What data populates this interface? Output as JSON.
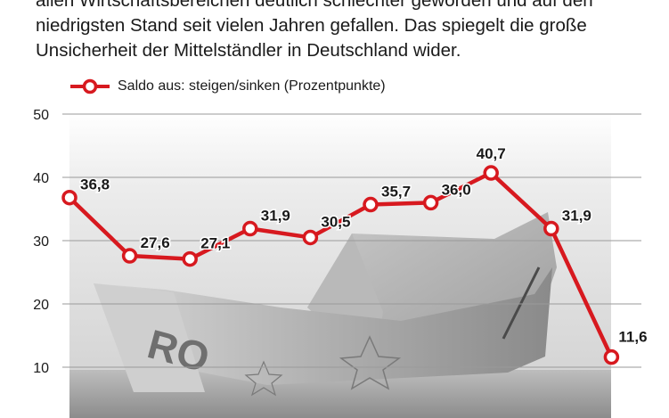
{
  "intro_lines": [
    "allen Wirtschaftsbereichen deutlich schlechter geworden und auf den",
    "niedrigsten Stand seit vielen Jahren gefallen. Das spiegelt die große",
    "Unsicherheit der Mittelständler in Deutschland wider."
  ],
  "colors": {
    "line": "#d7191f",
    "marker_fill": "#ffffff",
    "grid": "#9a9a9a",
    "text": "#1a1a1a"
  },
  "chart_data": {
    "type": "line",
    "title": "",
    "xlabel": "",
    "ylabel": "",
    "ylim": [
      10,
      50
    ],
    "yticks": [
      10,
      20,
      30,
      40,
      50
    ],
    "grid": true,
    "legend_position": "top-left",
    "series": [
      {
        "name": "Saldo aus: steigen/sinken (Prozentpunkte)",
        "values": [
          36.8,
          27.6,
          27.1,
          31.9,
          30.5,
          35.7,
          36.0,
          40.7,
          31.9,
          11.6
        ],
        "labels": [
          "36,8",
          "27,6",
          "27,1",
          "31,9",
          "30,5",
          "35,7",
          "36,0",
          "40,7",
          "31,9",
          "11,6"
        ]
      }
    ],
    "background_image": "paper boat folded from a euro banknote"
  }
}
